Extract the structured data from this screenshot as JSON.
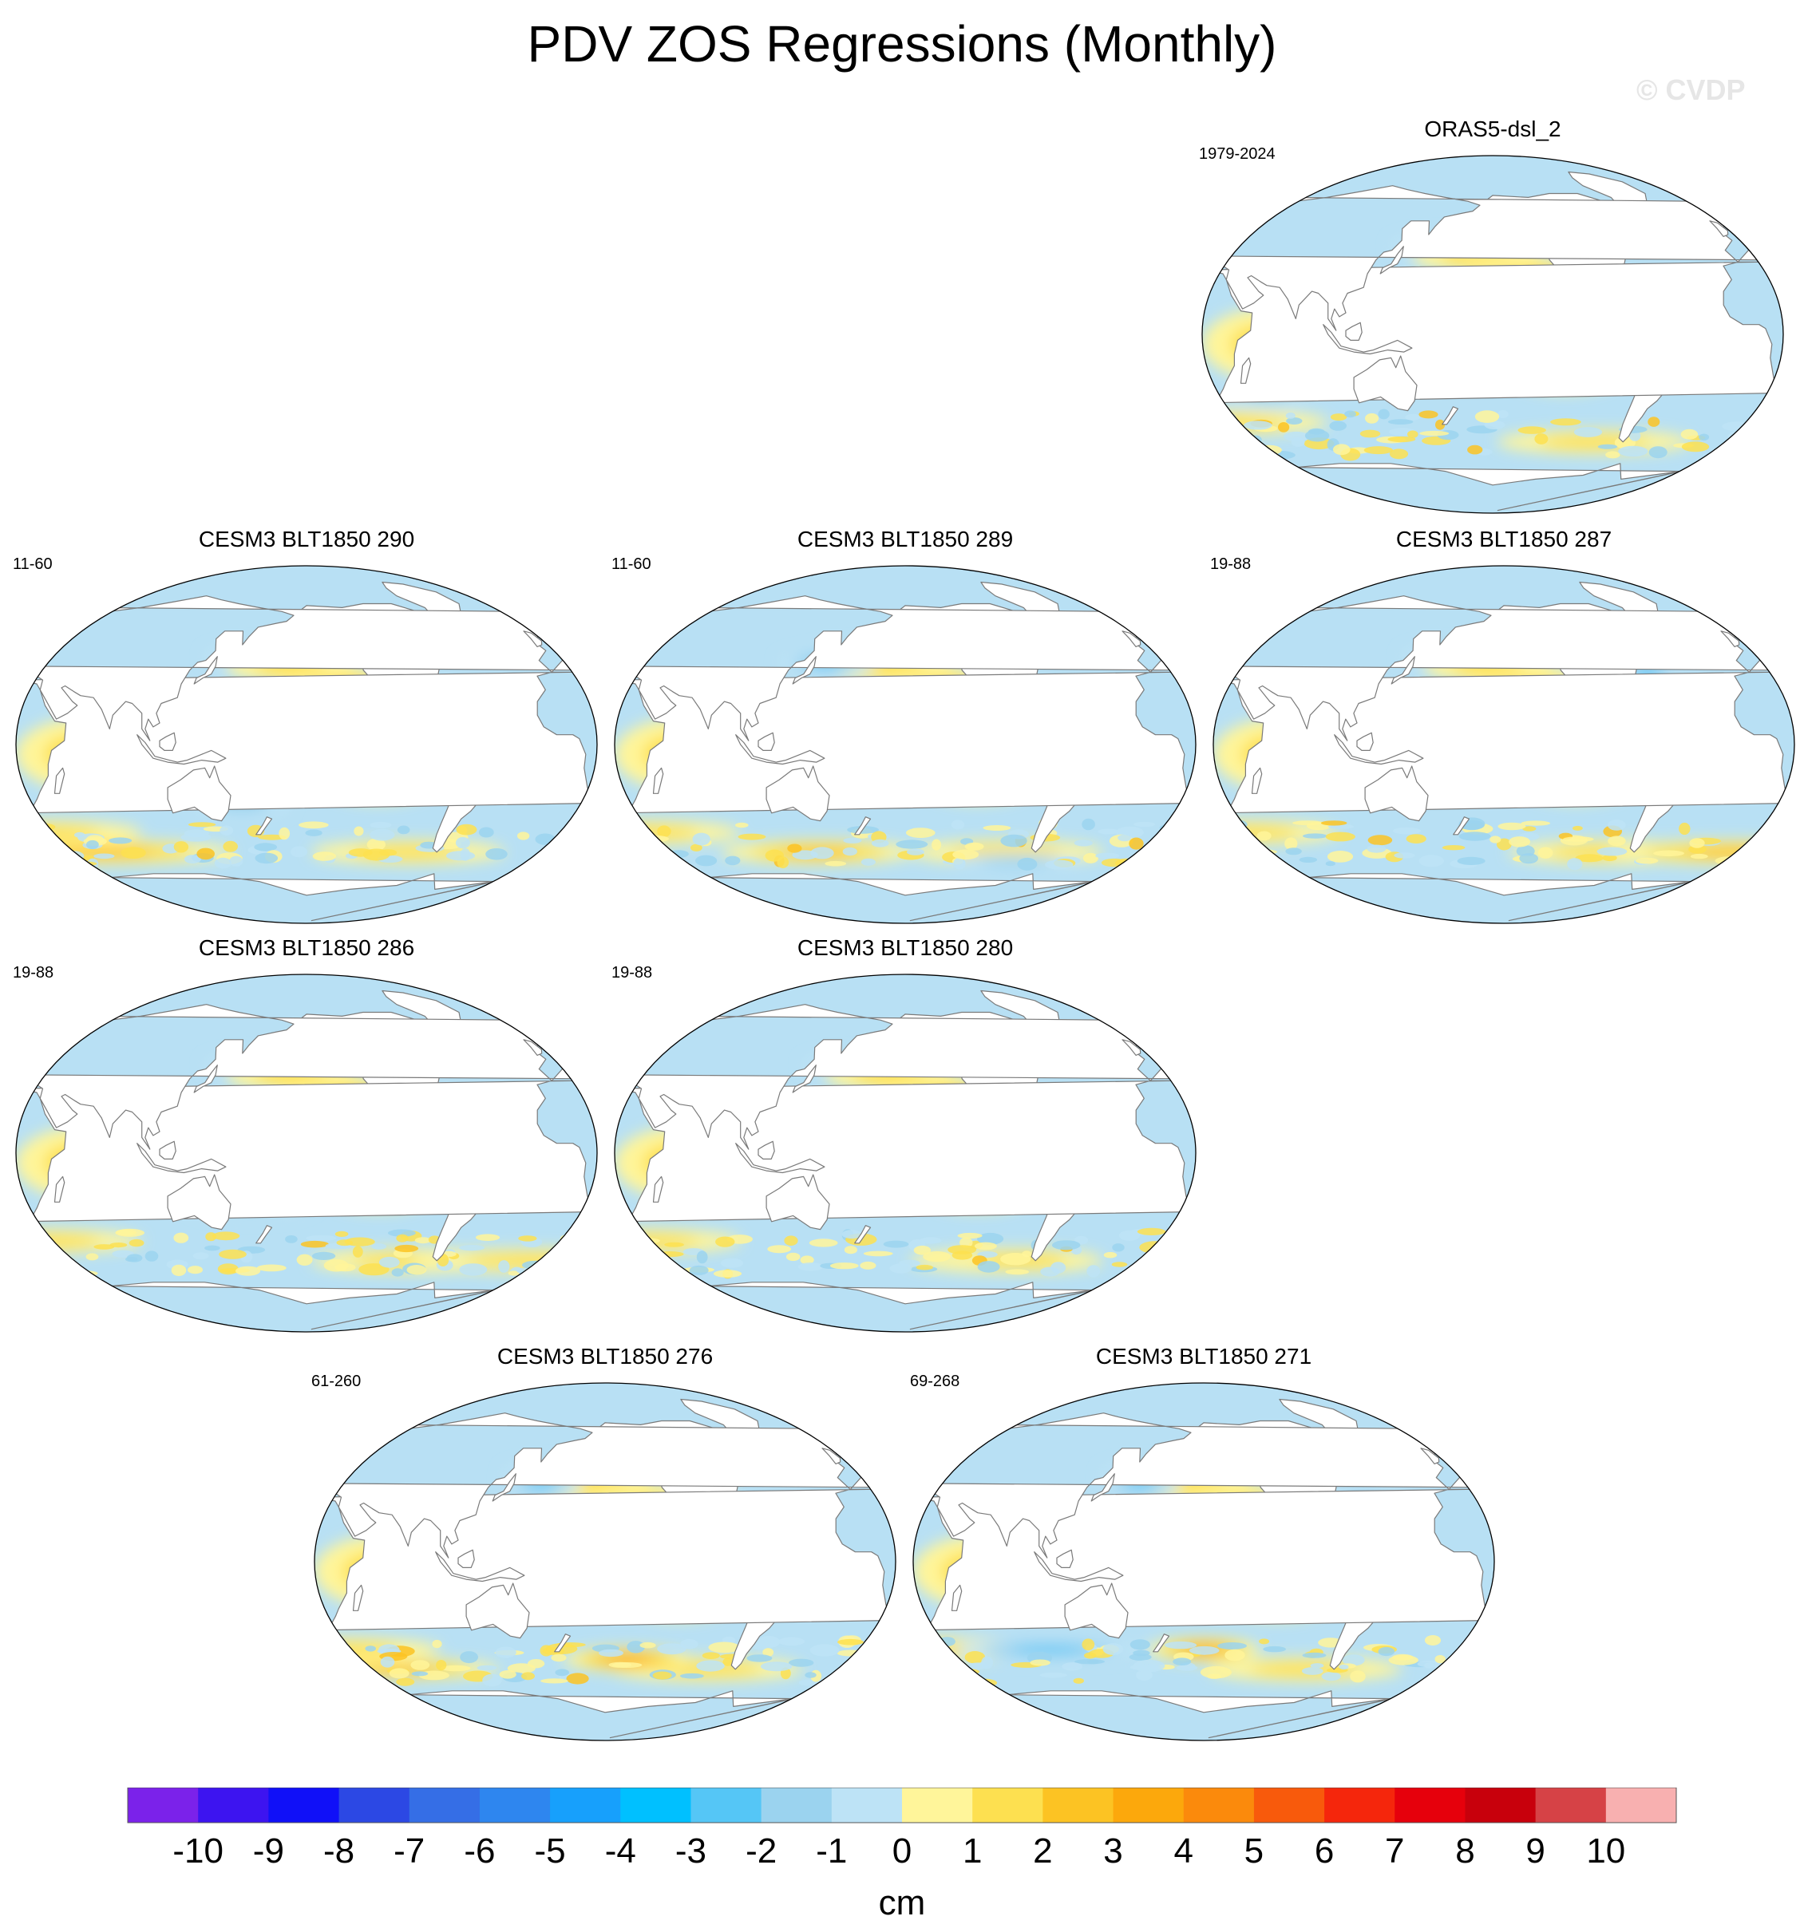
{
  "figure": {
    "title": "PDV ZOS Regressions (Monthly)",
    "watermark": "© CVDP",
    "units": "cm"
  },
  "colors": {
    "land": "#ffffff",
    "coast": "#7a7a7a",
    "ocean_base_neg": "#b8e0f4",
    "ocean_base_pos": "#fff59a"
  },
  "colorbar": {
    "labels": [
      "-10",
      "-9",
      "-8",
      "-7",
      "-6",
      "-5",
      "-4",
      "-3",
      "-2",
      "-1",
      "0",
      "1",
      "2",
      "3",
      "4",
      "5",
      "6",
      "7",
      "8",
      "9",
      "10"
    ],
    "colors": [
      "#7b22ea",
      "#3d14f0",
      "#1010f8",
      "#2c48e4",
      "#356ee6",
      "#2e86ef",
      "#17a0fc",
      "#00c0ff",
      "#55c6f6",
      "#9bd3ef",
      "#bde3f6",
      "#fff59a",
      "#fde050",
      "#fcc323",
      "#fca80c",
      "#fb8a0c",
      "#f85a0c",
      "#f5260c",
      "#e6000c",
      "#c8000c",
      "#d64246",
      "#f8b0b0"
    ]
  },
  "panels": [
    {
      "id": "orasp",
      "title": "ORAS5-dsl_2",
      "years": "1979-2024",
      "pattern": "obs"
    },
    {
      "id": "p290",
      "title": "CESM3 BLT1850 290",
      "years": "11-60",
      "pattern": "m1"
    },
    {
      "id": "p289",
      "title": "CESM3 BLT1850 289",
      "years": "11-60",
      "pattern": "m2"
    },
    {
      "id": "p287",
      "title": "CESM3 BLT1850 287",
      "years": "19-88",
      "pattern": "m3"
    },
    {
      "id": "p286",
      "title": "CESM3 BLT1850 286",
      "years": "19-88",
      "pattern": "m4"
    },
    {
      "id": "p280",
      "title": "CESM3 BLT1850 280",
      "years": "19-88",
      "pattern": "m5"
    },
    {
      "id": "p276",
      "title": "CESM3 BLT1850 276",
      "years": "61-260",
      "pattern": "m6"
    },
    {
      "id": "p271",
      "title": "CESM3 BLT1850 271",
      "years": "69-268",
      "pattern": "m7"
    }
  ]
}
